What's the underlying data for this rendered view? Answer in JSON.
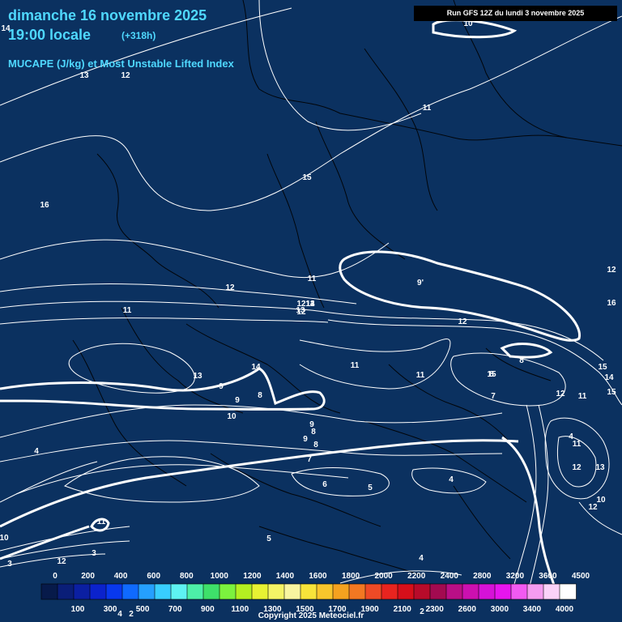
{
  "header": {
    "date": "dimanche 16 novembre 2025",
    "time": "19:00 locale",
    "lead": "(+318h)",
    "subtitle": "MUCAPE (J/kg) et Most Unstable Lifted Index",
    "run": "Run GFS 12Z du lundi 3 novembre 2025"
  },
  "contour_labels": [
    "10",
    "11",
    "12",
    "13",
    "14",
    "15",
    "16",
    "12",
    "13",
    "12",
    "12",
    "12",
    "11",
    "14",
    "13",
    "12",
    "11",
    "15",
    "9'",
    "12",
    "16",
    "15",
    "14",
    "15",
    "14",
    "13",
    "9",
    "8",
    "8",
    "9",
    "10",
    "11",
    "11",
    "8",
    "7",
    "12",
    "11",
    "9",
    "8",
    "9",
    "8",
    "7",
    "6",
    "5",
    "4",
    "4",
    "4",
    "11",
    "12",
    "13",
    "10",
    "12",
    "11",
    "10",
    "12",
    "3",
    "3",
    "5",
    "4",
    "4",
    "2",
    "2",
    "4"
  ],
  "scale": {
    "top_labels": [
      "0",
      "200",
      "400",
      "600",
      "800",
      "1000",
      "1200",
      "1400",
      "1600",
      "1800",
      "2000",
      "2200",
      "2400",
      "2800",
      "3200",
      "3600",
      "4500"
    ],
    "bottom_labels": [
      "100",
      "300",
      "500",
      "700",
      "900",
      "1100",
      "1300",
      "1500",
      "1700",
      "1900",
      "2100",
      "2300",
      "2600",
      "3000",
      "3400",
      "4000"
    ],
    "colors": [
      "#071a4a",
      "#0a1e78",
      "#0b1fa2",
      "#0b22cc",
      "#0838ee",
      "#0f6aff",
      "#25a0ff",
      "#38ceff",
      "#5ef2f2",
      "#4df0a8",
      "#3ee06a",
      "#7cf23e",
      "#b4f021",
      "#e8f233",
      "#f4f466",
      "#f8f5a0",
      "#f7e43a",
      "#f8c62c",
      "#f5a21f",
      "#f27822",
      "#ee4a26",
      "#e8241f",
      "#d70f1a",
      "#b80b2a",
      "#a30a50",
      "#ba0f86",
      "#cc10b0",
      "#d612d8",
      "#e615ee",
      "#f25af2",
      "#f59cf0",
      "#fbd2f8",
      "#ffffff"
    ]
  },
  "copyright": "Copyright 2025 Meteociel.fr"
}
